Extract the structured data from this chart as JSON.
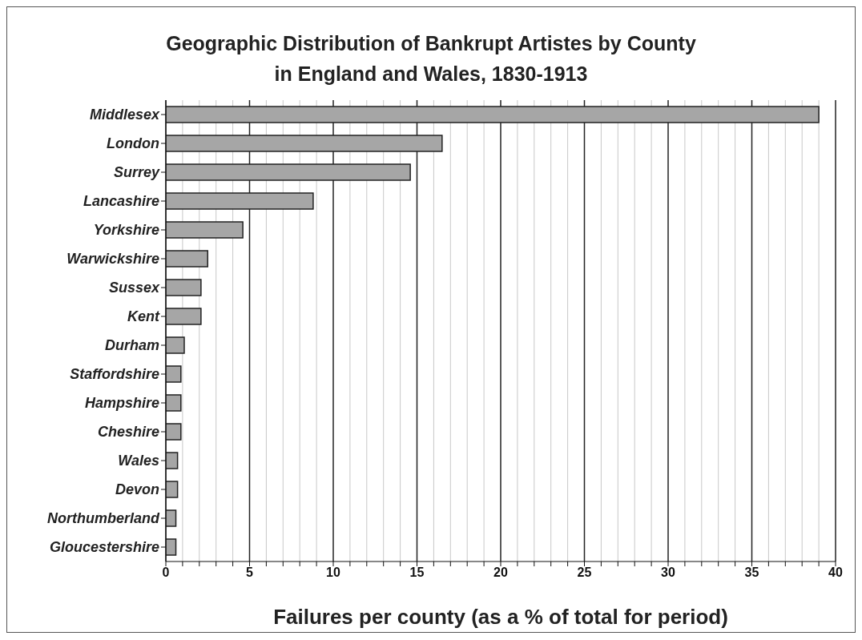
{
  "chart_data": {
    "type": "bar",
    "orientation": "horizontal",
    "title": "Geographic Distribution of Bankrupt Artistes by County\nin England and Wales, 1830-1913",
    "xlabel": "Failures per county (as a % of total for period)",
    "categories": [
      "Middlesex",
      "London",
      "Surrey",
      "Lancashire",
      "Yorkshire",
      "Warwickshire",
      "Sussex",
      "Kent",
      "Durham",
      "Staffordshire",
      "Hampshire",
      "Cheshire",
      "Wales",
      "Devon",
      "Northumberland",
      "Gloucestershire"
    ],
    "values": [
      39.0,
      16.5,
      14.6,
      8.8,
      4.6,
      2.5,
      2.1,
      2.1,
      1.1,
      0.9,
      0.9,
      0.9,
      0.7,
      0.7,
      0.6,
      0.6
    ],
    "color": "#a6a6a6",
    "xlim": [
      0,
      40
    ],
    "xticks": [
      0,
      {
        "value": 1,
        "label": null
      },
      {
        "value": 2,
        "label": null
      },
      {
        "value": 3,
        "label": null
      },
      {
        "value": 4,
        "label": null
      },
      5,
      {
        "value": 6,
        "label": null
      },
      {
        "value": 7,
        "label": null
      },
      {
        "value": 8,
        "label": null
      },
      {
        "value": 9,
        "label": null
      },
      10,
      {
        "value": 11,
        "label": null
      },
      {
        "value": 12,
        "label": null
      },
      {
        "value": 13,
        "label": null
      },
      {
        "value": 14,
        "label": null
      },
      15,
      {
        "value": 16,
        "label": null
      },
      {
        "value": 17,
        "label": null
      },
      {
        "value": 18,
        "label": null
      },
      {
        "value": 19,
        "label": null
      },
      20,
      {
        "value": 21,
        "label": null
      },
      {
        "value": 22,
        "label": null
      },
      {
        "value": 23,
        "label": null
      },
      {
        "value": 24,
        "label": null
      },
      25,
      {
        "value": 26,
        "label": null
      },
      {
        "value": 27,
        "label": null
      },
      {
        "value": 28,
        "label": null
      },
      {
        "value": 29,
        "label": null
      },
      30,
      {
        "value": 31,
        "label": null
      },
      {
        "value": 32,
        "label": null
      },
      {
        "value": 33,
        "label": null
      },
      {
        "value": 34,
        "label": null
      },
      35,
      {
        "value": 36,
        "label": null
      },
      {
        "value": 37,
        "label": null
      },
      {
        "value": 38,
        "label": null
      },
      {
        "value": 39,
        "label": null
      },
      40
    ],
    "grid": "x"
  }
}
